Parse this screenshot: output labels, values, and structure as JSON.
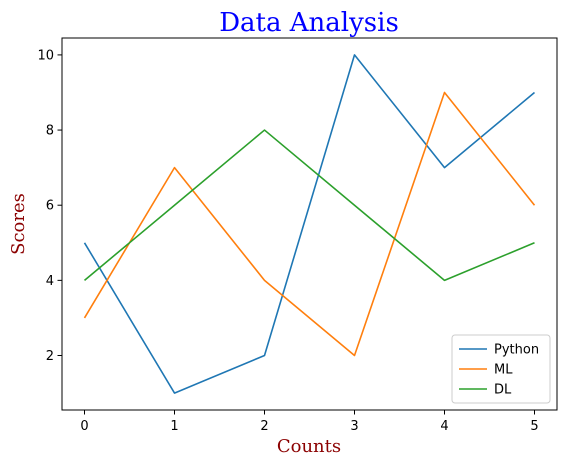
{
  "chart_data": {
    "type": "line",
    "title": "Data Analysis",
    "xlabel": "Counts",
    "ylabel": "Scores",
    "x": [
      0,
      1,
      2,
      3,
      4,
      5
    ],
    "xlim": [
      -0.25,
      5.25
    ],
    "ylim": [
      0.55,
      10.45
    ],
    "xticks": [
      "0",
      "1",
      "2",
      "3",
      "4",
      "5"
    ],
    "yticks": [
      "2",
      "4",
      "6",
      "8",
      "10"
    ],
    "grid": false,
    "legend_position": "bottom-right",
    "series": [
      {
        "name": "Python",
        "values": [
          5,
          1,
          2,
          10,
          7,
          9
        ],
        "color": "#1f77b4"
      },
      {
        "name": "ML",
        "values": [
          3,
          7,
          4,
          2,
          9,
          6
        ],
        "color": "#ff7f0e"
      },
      {
        "name": "DL",
        "values": [
          4,
          6,
          8,
          6,
          4,
          5
        ],
        "color": "#2ca02c"
      }
    ],
    "title_color": "#0000ff",
    "label_color": "#8b0000"
  }
}
